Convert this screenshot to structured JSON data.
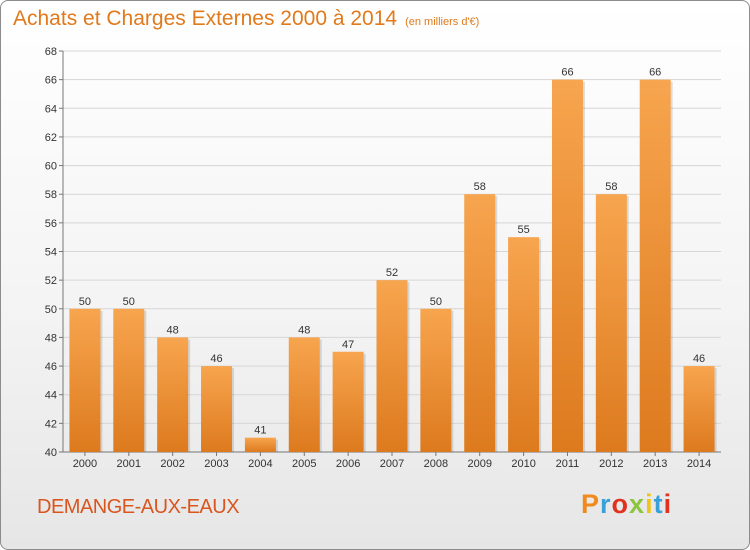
{
  "header": {
    "title": "Achats et Charges Externes 2000 à 2014",
    "unit": "(en milliers d'€)"
  },
  "footer": {
    "commune": "DEMANGE-AUX-EAUX",
    "logo_letters": [
      "P",
      "r",
      "o",
      "x",
      "i",
      "t",
      "i"
    ],
    "logo_colors": [
      "#f08a1c",
      "#3aa0d8",
      "#e0331f",
      "#8bc63e",
      "#f0c419",
      "#3aa0d8",
      "#e0331f"
    ]
  },
  "colors": {
    "bar_light": "#f7a54f",
    "bar_dark": "#dd7a1e",
    "title": "#e07a1c",
    "grid": "#d6d6d6"
  },
  "chart_data": {
    "type": "bar",
    "title": "Achats et Charges Externes 2000 à 2014",
    "subtitle": "(en milliers d'€)",
    "categories": [
      "2000",
      "2001",
      "2002",
      "2003",
      "2004",
      "2005",
      "2006",
      "2007",
      "2008",
      "2009",
      "2010",
      "2011",
      "2012",
      "2013",
      "2014"
    ],
    "values": [
      50,
      50,
      48,
      46,
      41,
      48,
      47,
      52,
      50,
      58,
      55,
      66,
      58,
      66,
      46
    ],
    "ylim": [
      40,
      68
    ],
    "yticks": [
      40,
      42,
      44,
      46,
      48,
      50,
      52,
      54,
      56,
      58,
      60,
      62,
      64,
      66,
      68
    ],
    "grid": true
  }
}
